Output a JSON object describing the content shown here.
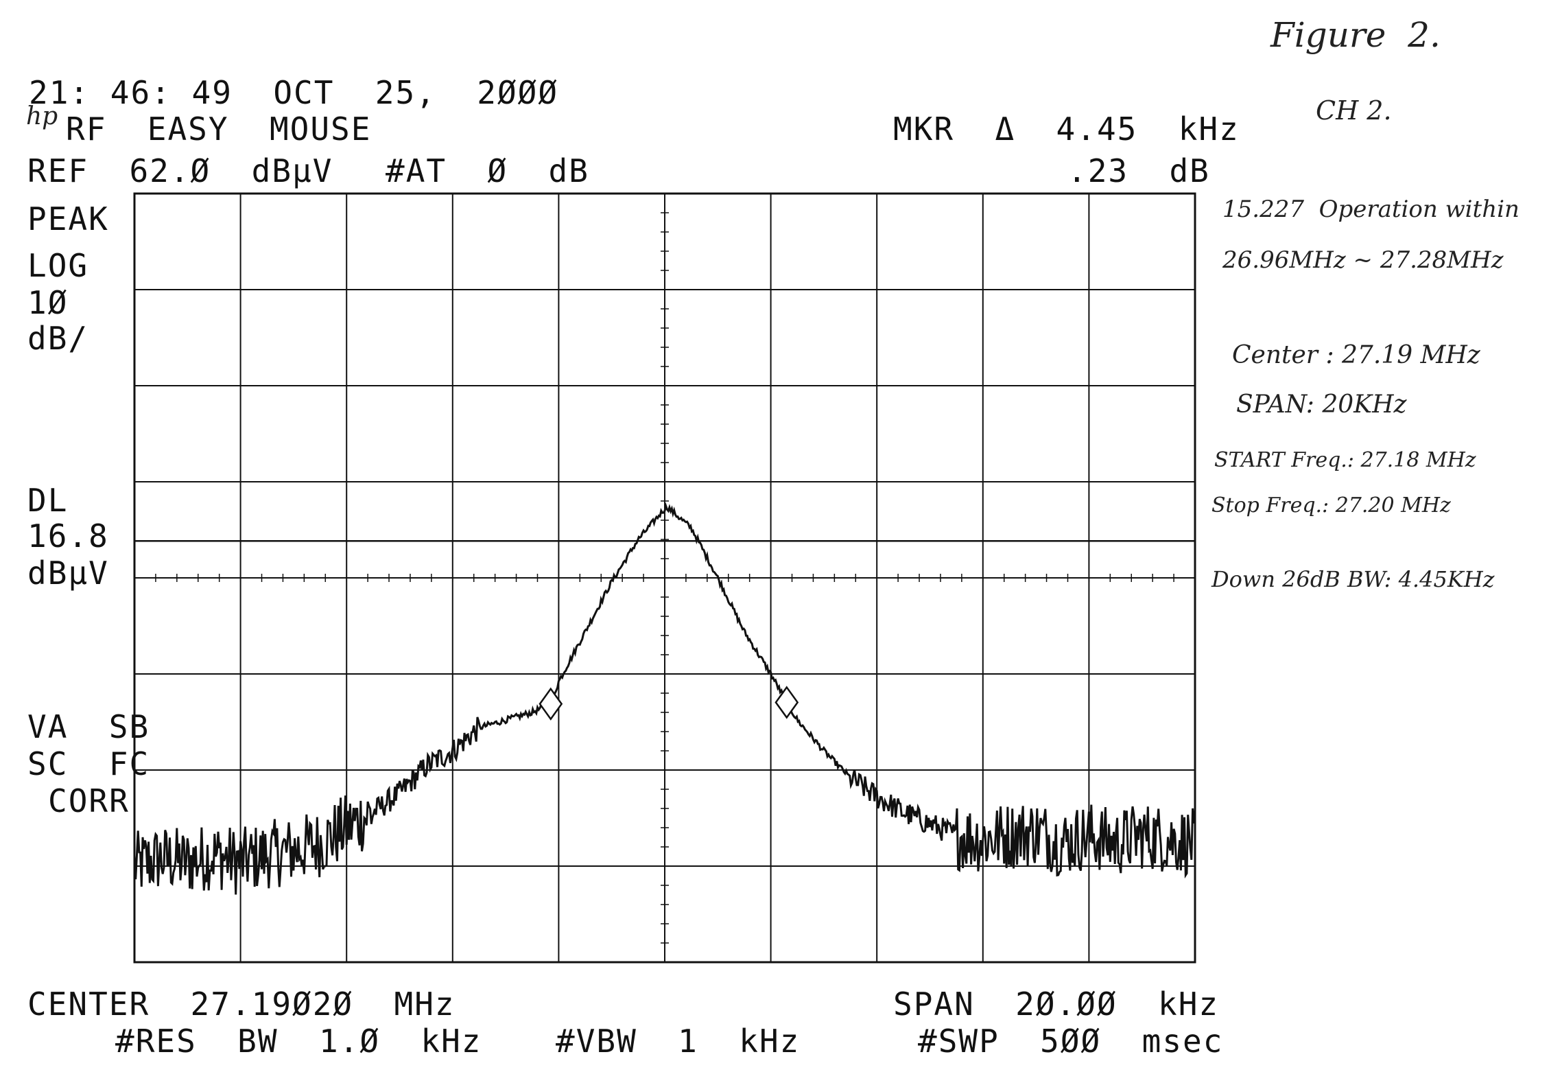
{
  "header": {
    "timestamp": "21: 46: 49  OCT  25,  2ØØØ",
    "logo": "hp",
    "title": "RF  EASY  MOUSE",
    "ref_level": "REF  62.Ø  dBµV",
    "attenuation": "#AT  Ø  dB",
    "marker_label": "MKR  Δ  4.45  kHz",
    "marker_value": ".23  dB"
  },
  "left_panel": {
    "detector": "PEAK",
    "scale_type": "LOG",
    "scale_value": "1Ø",
    "scale_unit": "dB/",
    "dl_label": "DL",
    "dl_value": "16.8",
    "dl_unit": "dBµV",
    "flags1": "VA  SB",
    "flags2": "SC  FC",
    "flags3": "CORR"
  },
  "footer": {
    "center": "CENTER  27.19Ø2Ø  MHz",
    "span": "SPAN  2Ø.ØØ  kHz",
    "rbw": "#RES  BW  1.Ø  kHz",
    "vbw": "#VBW  1  kHz",
    "sweep": "#SWP  5ØØ  msec"
  },
  "handwritten": {
    "figure": "Figure  2.",
    "channel": "CH 2.",
    "note1": "15.227  Operation within",
    "note2": "26.96MHz ~ 27.28MHz",
    "note3": "Center : 27.19 MHz",
    "note4": "SPAN: 20KHz",
    "note5": "START Freq.: 27.18 MHz",
    "note6": "Stop Freq.: 27.20 MHz",
    "note7": "Down 26dB BW: 4.45KHz"
  },
  "chart_data": {
    "type": "line",
    "x_unit": "kHz offset from center",
    "y_unit": "dBµV",
    "xlim": [
      -10,
      10
    ],
    "ylim": [
      -38,
      62
    ],
    "grid": true,
    "x_divisions": 10,
    "y_divisions": 8,
    "display_line_dBuV": 16.8,
    "peak": {
      "x": 0.05,
      "y": 21.2
    },
    "markers": [
      {
        "x": -2.15,
        "y": -4.4
      },
      {
        "x": 2.3,
        "y": -4.2
      }
    ],
    "series": [
      {
        "points": [
          [
            -10.0,
            -25.5
          ],
          [
            -9.5,
            -24.5
          ],
          [
            -9.0,
            -25.0
          ],
          [
            -8.5,
            -24.0
          ],
          [
            -8.0,
            -25.0
          ],
          [
            -7.5,
            -24.0
          ],
          [
            -7.0,
            -23.5
          ],
          [
            -6.5,
            -22.5
          ],
          [
            -6.0,
            -20.5
          ],
          [
            -5.5,
            -18.5
          ],
          [
            -5.0,
            -16.0
          ],
          [
            -4.5,
            -12.5
          ],
          [
            -4.0,
            -10.5
          ],
          [
            -3.5,
            -7.5
          ],
          [
            -3.0,
            -6.5
          ],
          [
            -2.5,
            -5.5
          ],
          [
            -2.15,
            -4.4
          ],
          [
            -2.0,
            -1.5
          ],
          [
            -1.5,
            5.0
          ],
          [
            -1.0,
            11.5
          ],
          [
            -0.5,
            17.0
          ],
          [
            0.0,
            21.0
          ],
          [
            0.05,
            21.2
          ],
          [
            0.5,
            18.5
          ],
          [
            1.0,
            12.0
          ],
          [
            1.5,
            5.0
          ],
          [
            2.0,
            -0.5
          ],
          [
            2.3,
            -4.2
          ],
          [
            2.5,
            -6.5
          ],
          [
            3.0,
            -10.5
          ],
          [
            3.5,
            -14.0
          ],
          [
            4.0,
            -16.5
          ],
          [
            4.5,
            -18.5
          ],
          [
            5.0,
            -20.0
          ],
          [
            5.5,
            -21.5
          ],
          [
            6.0,
            -22.0
          ],
          [
            6.5,
            -21.5
          ],
          [
            7.0,
            -21.0
          ],
          [
            7.5,
            -22.5
          ],
          [
            8.0,
            -21.5
          ],
          [
            8.5,
            -22.5
          ],
          [
            9.0,
            -21.5
          ],
          [
            9.5,
            -22.0
          ],
          [
            10.0,
            -22.5
          ]
        ]
      }
    ]
  }
}
